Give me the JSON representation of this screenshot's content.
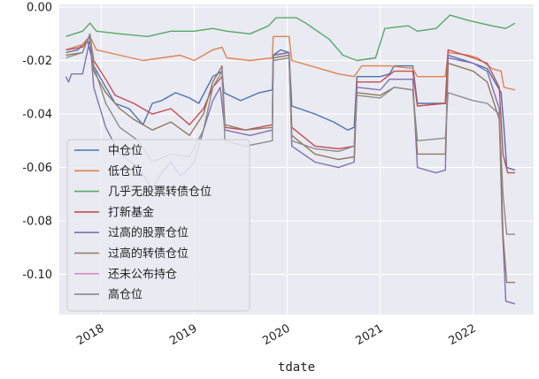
{
  "chart_data": {
    "type": "line",
    "title": "",
    "xlabel": "tdate",
    "ylabel": "",
    "xlim": [
      2017.55,
      2022.65
    ],
    "ylim": [
      -0.115,
      0.001
    ],
    "grid": true,
    "legend_position": "lower-left",
    "x_ticks": [
      {
        "value": 2018,
        "label": "2018"
      },
      {
        "value": 2019,
        "label": "2019"
      },
      {
        "value": 2020,
        "label": "2020"
      },
      {
        "value": 2021,
        "label": "2021"
      },
      {
        "value": 2022,
        "label": "2022"
      }
    ],
    "y_ticks": [
      {
        "value": 0.0,
        "label": "0.00"
      },
      {
        "value": -0.02,
        "label": "-0.02"
      },
      {
        "value": -0.04,
        "label": "-0.04"
      },
      {
        "value": -0.06,
        "label": "-0.06"
      },
      {
        "value": -0.08,
        "label": "-0.08"
      },
      {
        "value": -0.1,
        "label": "-0.10"
      }
    ],
    "series": [
      {
        "name": "中仓位",
        "color": "#4c72b0",
        "points": [
          [
            2017.62,
            -0.017
          ],
          [
            2017.75,
            -0.016
          ],
          [
            2017.85,
            -0.012
          ],
          [
            2017.92,
            -0.022
          ],
          [
            2018.05,
            -0.03
          ],
          [
            2018.15,
            -0.036
          ],
          [
            2018.3,
            -0.038
          ],
          [
            2018.45,
            -0.044
          ],
          [
            2018.55,
            -0.036
          ],
          [
            2018.65,
            -0.035
          ],
          [
            2018.8,
            -0.032
          ],
          [
            2018.95,
            -0.034
          ],
          [
            2019.05,
            -0.036
          ],
          [
            2019.2,
            -0.026
          ],
          [
            2019.3,
            -0.024
          ],
          [
            2019.32,
            -0.032
          ],
          [
            2019.5,
            -0.035
          ],
          [
            2019.7,
            -0.032
          ],
          [
            2019.84,
            -0.031
          ],
          [
            2019.85,
            -0.018
          ],
          [
            2019.93,
            -0.016
          ],
          [
            2020.02,
            -0.017
          ],
          [
            2020.05,
            -0.037
          ],
          [
            2020.3,
            -0.04
          ],
          [
            2020.5,
            -0.043
          ],
          [
            2020.65,
            -0.046
          ],
          [
            2020.72,
            -0.045
          ],
          [
            2020.75,
            -0.026
          ],
          [
            2021.0,
            -0.026
          ],
          [
            2021.1,
            -0.025
          ],
          [
            2021.15,
            -0.022
          ],
          [
            2021.35,
            -0.022
          ],
          [
            2021.4,
            -0.036
          ],
          [
            2021.7,
            -0.036
          ],
          [
            2021.73,
            -0.018
          ],
          [
            2022.0,
            -0.021
          ],
          [
            2022.15,
            -0.023
          ],
          [
            2022.3,
            -0.032
          ],
          [
            2022.33,
            -0.045
          ],
          [
            2022.36,
            -0.06
          ],
          [
            2022.45,
            -0.061
          ]
        ]
      },
      {
        "name": "低仓位",
        "color": "#dd8452",
        "points": [
          [
            2017.62,
            -0.016
          ],
          [
            2017.8,
            -0.014
          ],
          [
            2017.88,
            -0.011
          ],
          [
            2017.95,
            -0.016
          ],
          [
            2018.2,
            -0.018
          ],
          [
            2018.45,
            -0.02
          ],
          [
            2018.65,
            -0.019
          ],
          [
            2018.85,
            -0.018
          ],
          [
            2019.0,
            -0.02
          ],
          [
            2019.2,
            -0.016
          ],
          [
            2019.3,
            -0.015
          ],
          [
            2019.35,
            -0.019
          ],
          [
            2019.6,
            -0.02
          ],
          [
            2019.84,
            -0.019
          ],
          [
            2019.85,
            -0.011
          ],
          [
            2020.02,
            -0.011
          ],
          [
            2020.05,
            -0.02
          ],
          [
            2020.35,
            -0.023
          ],
          [
            2020.55,
            -0.025
          ],
          [
            2020.72,
            -0.026
          ],
          [
            2020.8,
            -0.022
          ],
          [
            2021.1,
            -0.022
          ],
          [
            2021.35,
            -0.023
          ],
          [
            2021.4,
            -0.026
          ],
          [
            2021.7,
            -0.026
          ],
          [
            2021.73,
            -0.017
          ],
          [
            2021.95,
            -0.018
          ],
          [
            2022.05,
            -0.019
          ],
          [
            2022.2,
            -0.023
          ],
          [
            2022.3,
            -0.024
          ],
          [
            2022.33,
            -0.03
          ],
          [
            2022.45,
            -0.031
          ]
        ]
      },
      {
        "name": "几乎无股票转债仓位",
        "color": "#55a868",
        "points": [
          [
            2017.62,
            -0.011
          ],
          [
            2017.8,
            -0.009
          ],
          [
            2017.88,
            -0.006
          ],
          [
            2017.95,
            -0.009
          ],
          [
            2018.2,
            -0.01
          ],
          [
            2018.5,
            -0.011
          ],
          [
            2018.75,
            -0.009
          ],
          [
            2019.0,
            -0.009
          ],
          [
            2019.2,
            -0.008
          ],
          [
            2019.35,
            -0.009
          ],
          [
            2019.6,
            -0.01
          ],
          [
            2019.8,
            -0.007
          ],
          [
            2019.88,
            -0.004
          ],
          [
            2020.1,
            -0.004
          ],
          [
            2020.2,
            -0.006
          ],
          [
            2020.45,
            -0.012
          ],
          [
            2020.6,
            -0.018
          ],
          [
            2020.75,
            -0.02
          ],
          [
            2020.95,
            -0.019
          ],
          [
            2021.05,
            -0.008
          ],
          [
            2021.3,
            -0.007
          ],
          [
            2021.4,
            -0.009
          ],
          [
            2021.6,
            -0.008
          ],
          [
            2021.75,
            -0.003
          ],
          [
            2021.95,
            -0.005
          ],
          [
            2022.2,
            -0.007
          ],
          [
            2022.35,
            -0.008
          ],
          [
            2022.45,
            -0.006
          ]
        ]
      },
      {
        "name": "打新基金",
        "color": "#c44e52",
        "points": [
          [
            2017.62,
            -0.016
          ],
          [
            2017.8,
            -0.015
          ],
          [
            2017.88,
            -0.011
          ],
          [
            2017.92,
            -0.02
          ],
          [
            2018.05,
            -0.027
          ],
          [
            2018.15,
            -0.033
          ],
          [
            2018.35,
            -0.036
          ],
          [
            2018.55,
            -0.04
          ],
          [
            2018.75,
            -0.038
          ],
          [
            2018.95,
            -0.044
          ],
          [
            2019.1,
            -0.038
          ],
          [
            2019.2,
            -0.03
          ],
          [
            2019.3,
            -0.026
          ],
          [
            2019.33,
            -0.045
          ],
          [
            2019.55,
            -0.046
          ],
          [
            2019.84,
            -0.044
          ],
          [
            2019.85,
            -0.018
          ],
          [
            2020.02,
            -0.017
          ],
          [
            2020.05,
            -0.045
          ],
          [
            2020.3,
            -0.052
          ],
          [
            2020.55,
            -0.053
          ],
          [
            2020.72,
            -0.052
          ],
          [
            2020.75,
            -0.028
          ],
          [
            2021.0,
            -0.028
          ],
          [
            2021.15,
            -0.024
          ],
          [
            2021.35,
            -0.024
          ],
          [
            2021.4,
            -0.037
          ],
          [
            2021.7,
            -0.036
          ],
          [
            2021.73,
            -0.016
          ],
          [
            2022.0,
            -0.019
          ],
          [
            2022.15,
            -0.021
          ],
          [
            2022.28,
            -0.03
          ],
          [
            2022.32,
            -0.055
          ],
          [
            2022.37,
            -0.062
          ],
          [
            2022.45,
            -0.062
          ]
        ]
      },
      {
        "name": "过高的股票仓位",
        "color": "#8172b2",
        "points": [
          [
            2017.62,
            -0.026
          ],
          [
            2017.65,
            -0.028
          ],
          [
            2017.68,
            -0.025
          ],
          [
            2017.8,
            -0.025
          ],
          [
            2017.88,
            -0.012
          ],
          [
            2017.92,
            -0.03
          ],
          [
            2018.05,
            -0.045
          ],
          [
            2018.2,
            -0.055
          ],
          [
            2018.4,
            -0.06
          ],
          [
            2018.55,
            -0.068
          ],
          [
            2018.65,
            -0.062
          ],
          [
            2018.75,
            -0.058
          ],
          [
            2018.85,
            -0.063
          ],
          [
            2018.9,
            -0.062
          ],
          [
            2019.0,
            -0.058
          ],
          [
            2019.1,
            -0.046
          ],
          [
            2019.2,
            -0.035
          ],
          [
            2019.28,
            -0.03
          ],
          [
            2019.33,
            -0.046
          ],
          [
            2019.6,
            -0.048
          ],
          [
            2019.84,
            -0.046
          ],
          [
            2019.85,
            -0.018
          ],
          [
            2020.02,
            -0.017
          ],
          [
            2020.05,
            -0.052
          ],
          [
            2020.3,
            -0.058
          ],
          [
            2020.55,
            -0.06
          ],
          [
            2020.72,
            -0.058
          ],
          [
            2020.75,
            -0.03
          ],
          [
            2021.0,
            -0.031
          ],
          [
            2021.1,
            -0.027
          ],
          [
            2021.35,
            -0.027
          ],
          [
            2021.4,
            -0.06
          ],
          [
            2021.6,
            -0.062
          ],
          [
            2021.7,
            -0.061
          ],
          [
            2021.73,
            -0.019
          ],
          [
            2022.0,
            -0.021
          ],
          [
            2022.15,
            -0.024
          ],
          [
            2022.28,
            -0.038
          ],
          [
            2022.31,
            -0.08
          ],
          [
            2022.35,
            -0.11
          ],
          [
            2022.45,
            -0.111
          ]
        ]
      },
      {
        "name": "过高的转债仓位",
        "color": "#937860",
        "points": [
          [
            2017.62,
            -0.018
          ],
          [
            2017.8,
            -0.017
          ],
          [
            2017.88,
            -0.01
          ],
          [
            2017.92,
            -0.024
          ],
          [
            2018.05,
            -0.032
          ],
          [
            2018.2,
            -0.038
          ],
          [
            2018.35,
            -0.042
          ],
          [
            2018.55,
            -0.046
          ],
          [
            2018.75,
            -0.043
          ],
          [
            2018.95,
            -0.048
          ],
          [
            2019.1,
            -0.04
          ],
          [
            2019.2,
            -0.028
          ],
          [
            2019.3,
            -0.022
          ],
          [
            2019.33,
            -0.044
          ],
          [
            2019.55,
            -0.046
          ],
          [
            2019.84,
            -0.045
          ],
          [
            2019.85,
            -0.019
          ],
          [
            2020.02,
            -0.018
          ],
          [
            2020.05,
            -0.048
          ],
          [
            2020.3,
            -0.055
          ],
          [
            2020.55,
            -0.057
          ],
          [
            2020.72,
            -0.056
          ],
          [
            2020.75,
            -0.032
          ],
          [
            2021.0,
            -0.033
          ],
          [
            2021.15,
            -0.03
          ],
          [
            2021.35,
            -0.031
          ],
          [
            2021.4,
            -0.055
          ],
          [
            2021.7,
            -0.055
          ],
          [
            2021.73,
            -0.021
          ],
          [
            2022.0,
            -0.024
          ],
          [
            2022.15,
            -0.028
          ],
          [
            2022.28,
            -0.042
          ],
          [
            2022.32,
            -0.085
          ],
          [
            2022.36,
            -0.103
          ],
          [
            2022.45,
            -0.103
          ]
        ]
      },
      {
        "name": "还未公布持仓",
        "color": "#da8bc3",
        "points": []
      },
      {
        "name": "高仓位",
        "color": "#8c8c8c",
        "points": [
          [
            2017.62,
            -0.019
          ],
          [
            2017.8,
            -0.017
          ],
          [
            2017.88,
            -0.01
          ],
          [
            2017.92,
            -0.022
          ],
          [
            2018.05,
            -0.036
          ],
          [
            2018.2,
            -0.045
          ],
          [
            2018.4,
            -0.05
          ],
          [
            2018.55,
            -0.058
          ],
          [
            2018.75,
            -0.055
          ],
          [
            2018.95,
            -0.056
          ],
          [
            2019.1,
            -0.046
          ],
          [
            2019.2,
            -0.03
          ],
          [
            2019.3,
            -0.024
          ],
          [
            2019.33,
            -0.05
          ],
          [
            2019.55,
            -0.052
          ],
          [
            2019.84,
            -0.05
          ],
          [
            2019.85,
            -0.02
          ],
          [
            2020.02,
            -0.019
          ],
          [
            2020.05,
            -0.05
          ],
          [
            2020.3,
            -0.053
          ],
          [
            2020.55,
            -0.054
          ],
          [
            2020.72,
            -0.052
          ],
          [
            2020.75,
            -0.033
          ],
          [
            2021.0,
            -0.034
          ],
          [
            2021.15,
            -0.03
          ],
          [
            2021.35,
            -0.031
          ],
          [
            2021.4,
            -0.05
          ],
          [
            2021.7,
            -0.049
          ],
          [
            2021.73,
            -0.032
          ],
          [
            2022.0,
            -0.035
          ],
          [
            2022.15,
            -0.036
          ],
          [
            2022.28,
            -0.04
          ],
          [
            2022.32,
            -0.07
          ],
          [
            2022.36,
            -0.085
          ],
          [
            2022.45,
            -0.085
          ]
        ]
      }
    ]
  }
}
